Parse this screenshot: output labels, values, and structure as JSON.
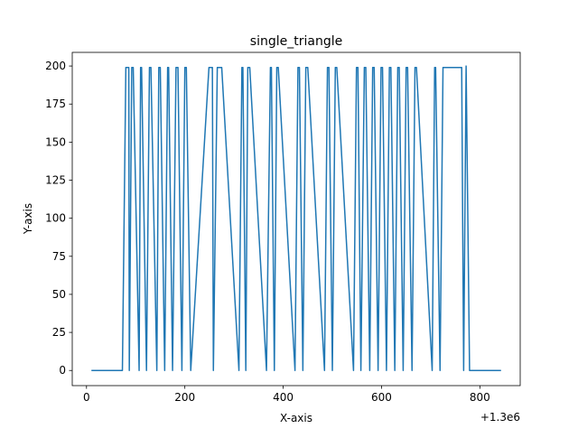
{
  "chart_data": {
    "type": "line",
    "title": "single_triangle",
    "xlabel": "X-axis",
    "ylabel": "Y-axis",
    "x_offset_label": "+1.3e6",
    "xlim": [
      -29,
      882
    ],
    "ylim": [
      -9.95,
      208.95
    ],
    "xticks": [
      0,
      200,
      400,
      600,
      800
    ],
    "xtick_labels": [
      "0",
      "200",
      "400",
      "600",
      "800"
    ],
    "yticks": [
      0,
      25,
      50,
      75,
      100,
      125,
      150,
      175,
      200
    ],
    "ytick_labels": [
      "0",
      "25",
      "50",
      "75",
      "100",
      "125",
      "150",
      "175",
      "200"
    ],
    "grid": false,
    "line_color": "#1f77b4",
    "series": [
      {
        "x": [
          10,
          73,
          80,
          86,
          87,
          92,
          95,
          107,
          110,
          112,
          122,
          128,
          131,
          143,
          147,
          150,
          159,
          165,
          167,
          175,
          182,
          186,
          194,
          200,
          203,
          212,
          249,
          256,
          258,
          266,
          272,
          275,
          310,
          316,
          318,
          324,
          328,
          332,
          366,
          374,
          376,
          382,
          387,
          390,
          424,
          430,
          433,
          440,
          446,
          450,
          484,
          490,
          493,
          500,
          506,
          509,
          543,
          549,
          552,
          558,
          565,
          568,
          576,
          582,
          585,
          593,
          599,
          602,
          610,
          616,
          619,
          627,
          633,
          636,
          644,
          650,
          653,
          662,
          668,
          671,
          703,
          708,
          710,
          719,
          725,
          728,
          763,
          767,
          772,
          779,
          843
        ],
        "y": [
          0,
          0,
          199,
          199,
          0,
          199,
          199,
          0,
          199,
          199,
          0,
          199,
          199,
          0,
          199,
          199,
          0,
          199,
          199,
          0,
          199,
          199,
          0,
          199,
          199,
          0,
          199,
          199,
          0,
          199,
          199,
          199,
          0,
          199,
          199,
          0,
          199,
          199,
          0,
          199,
          199,
          0,
          199,
          199,
          0,
          199,
          199,
          0,
          199,
          199,
          0,
          199,
          199,
          0,
          199,
          199,
          0,
          199,
          199,
          0,
          199,
          199,
          0,
          199,
          199,
          0,
          199,
          199,
          0,
          199,
          199,
          0,
          199,
          199,
          0,
          199,
          199,
          0,
          199,
          199,
          0,
          199,
          199,
          0,
          199,
          199,
          199,
          0,
          200,
          0,
          0
        ]
      }
    ]
  }
}
